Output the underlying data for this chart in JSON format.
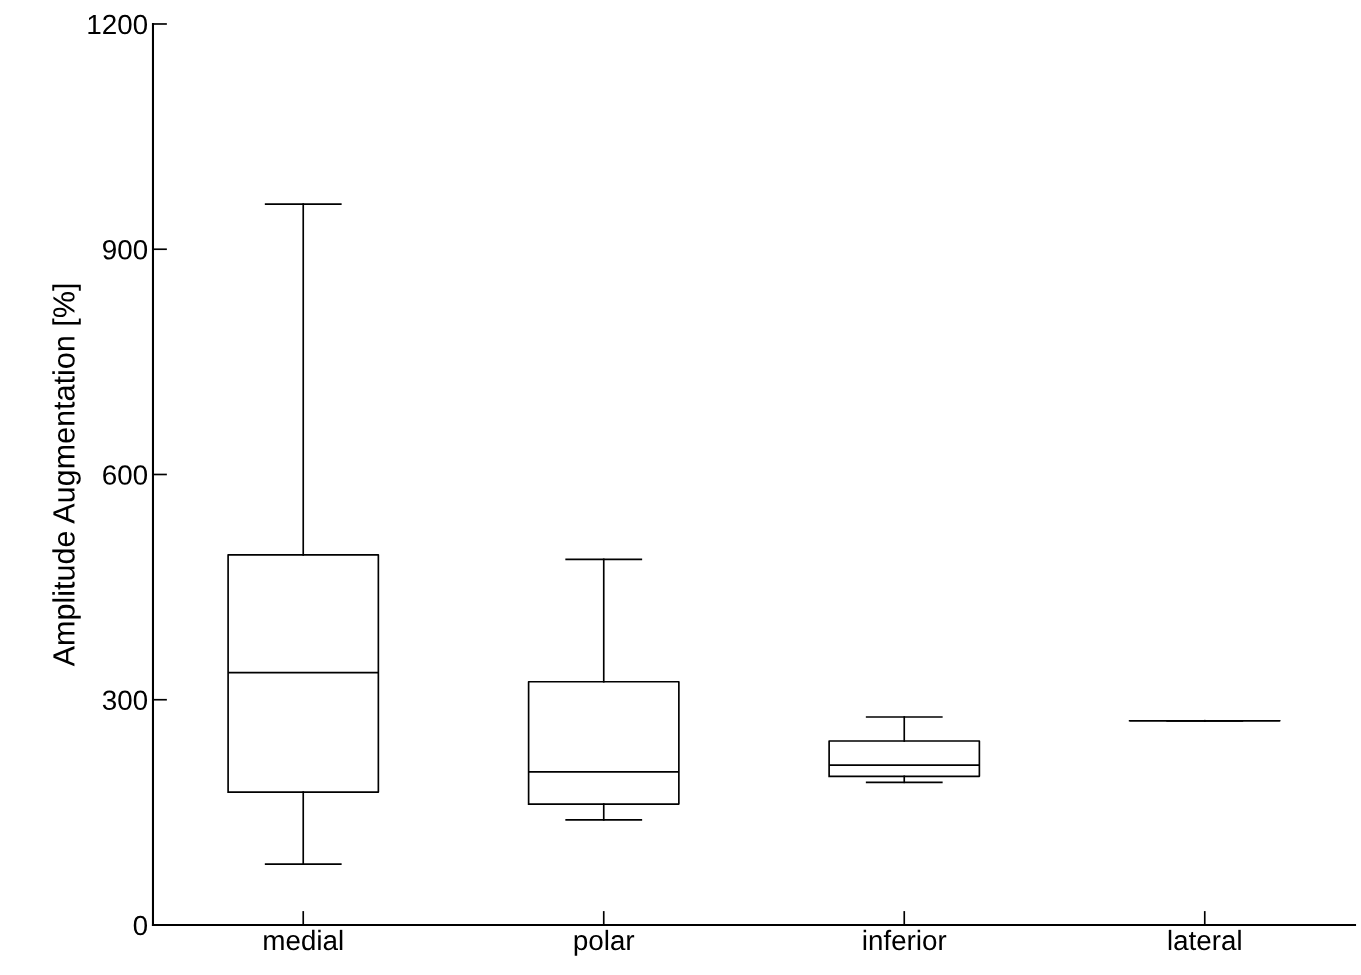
{
  "chart_data": {
    "type": "box",
    "ylabel": "Amplitude Augmentation [%]",
    "categories": [
      "medial",
      "polar",
      "inferior",
      "lateral"
    ],
    "boxes": [
      {
        "low": 81,
        "q1": 177,
        "median": 336,
        "q3": 493,
        "high": 960
      },
      {
        "low": 140,
        "q1": 161,
        "median": 204,
        "q3": 324,
        "high": 487
      },
      {
        "low": 190,
        "q1": 198,
        "median": 213,
        "q3": 245,
        "high": 277
      },
      {
        "low": 272,
        "q1": 272,
        "median": 272,
        "q3": 272,
        "high": 272
      }
    ],
    "color": "#000000",
    "ylim": [
      0,
      1200
    ],
    "yticks": [
      0,
      300,
      600,
      900,
      1200
    ]
  }
}
